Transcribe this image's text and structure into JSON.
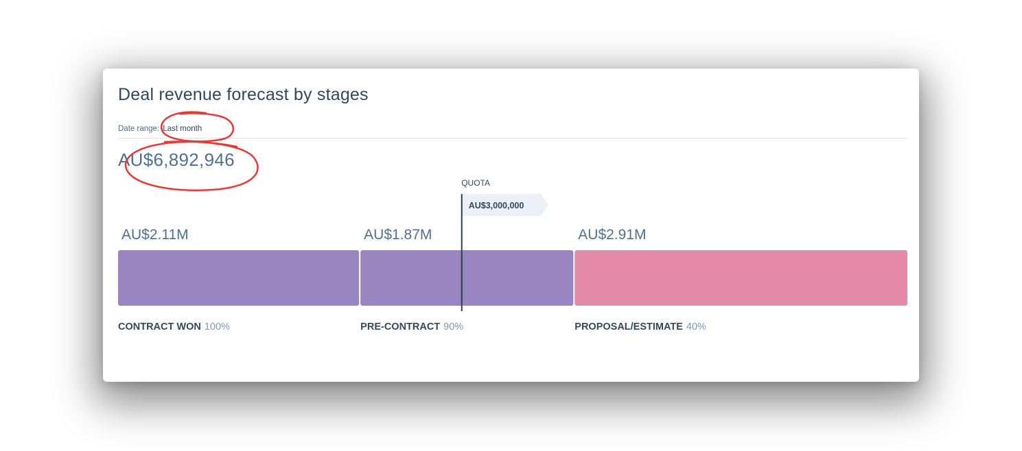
{
  "report": {
    "title": "Deal revenue forecast by stages",
    "date_range_label": "Date range:",
    "date_range_value": "Last month",
    "total": "AU$6,892,946"
  },
  "colors": {
    "purple": "#9885c2",
    "pink": "#e58ba9",
    "dark": "#33475b",
    "annotation": "#e53935"
  },
  "chart_data": {
    "type": "bar",
    "orientation": "horizontal-stacked",
    "quota": {
      "label": "QUOTA",
      "value": 3000000,
      "value_label": "AU$3,000,000"
    },
    "categories": [
      "CONTRACT WON",
      "PRE-CONTRACT",
      "PROPOSAL/ESTIMATE"
    ],
    "probabilities": [
      "100%",
      "90%",
      "40%"
    ],
    "values": [
      2110000,
      1870000,
      2910000
    ],
    "value_labels": [
      "AU$2.11M",
      "AU$1.87M",
      "AU$2.91M"
    ],
    "colors": [
      "#9885c2",
      "#9885c2",
      "#e58ba9"
    ],
    "xlim": [
      0,
      6890000
    ]
  }
}
